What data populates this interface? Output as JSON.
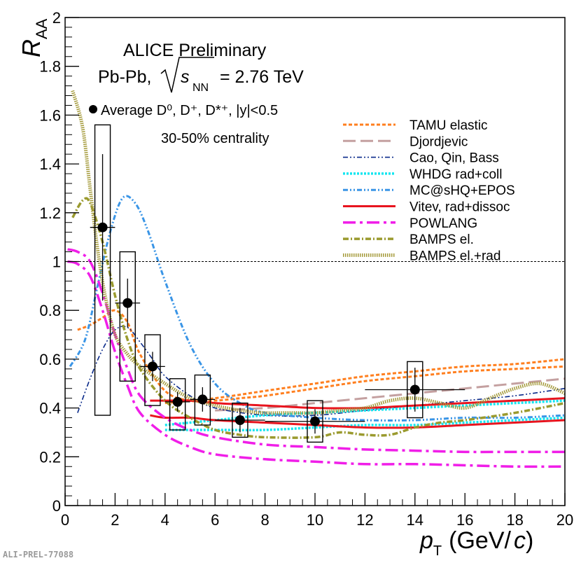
{
  "prelim_tag": "ALI-PREL-77088",
  "chart_data": {
    "type": "scatter",
    "title": "ALICE Preliminary",
    "system": "Pb-Pb, √sNN = 2.76 TeV",
    "system_parts": {
      "prefix": "Pb-Pb,",
      "s": "s",
      "nn": "NN",
      "energy": "= 2.76 TeV"
    },
    "measurement_label": "Average D⁰, D⁺, D*⁺, |y|<0.5",
    "centrality": "30-50% centrality",
    "xlabel": "p_T (GeV/c)",
    "xlabel_parts": {
      "p": "p",
      "T": "T",
      "unit": "(GeV/",
      "c": "c",
      "close": ")"
    },
    "ylabel": "R_AA",
    "ylabel_parts": {
      "R": "R",
      "AA": "AA"
    },
    "xlim": [
      0,
      20
    ],
    "ylim": [
      0,
      2
    ],
    "x_ticks": [
      "0",
      "2",
      "4",
      "6",
      "8",
      "10",
      "12",
      "14",
      "16",
      "18",
      "20"
    ],
    "y_ticks": [
      "0",
      "0.2",
      "0.4",
      "0.6",
      "0.8",
      "1",
      "1.2",
      "1.4",
      "1.6",
      "1.8",
      "2"
    ],
    "reference_line_y": 1,
    "grid": false,
    "legend_position": "top-right",
    "data_points": [
      {
        "x": 1.5,
        "y": 1.14,
        "xerr": 0.5,
        "stat": 0.3,
        "sys_low": 0.37,
        "sys_high": 1.56
      },
      {
        "x": 2.5,
        "y": 0.83,
        "xerr": 0.5,
        "stat": 0.1,
        "sys_low": 0.51,
        "sys_high": 1.04
      },
      {
        "x": 3.5,
        "y": 0.57,
        "xerr": 0.5,
        "stat": 0.06,
        "sys_low": 0.41,
        "sys_high": 0.7
      },
      {
        "x": 4.5,
        "y": 0.425,
        "xerr": 0.5,
        "stat": 0.04,
        "sys_low": 0.31,
        "sys_high": 0.52
      },
      {
        "x": 5.5,
        "y": 0.435,
        "xerr": 0.5,
        "stat": 0.05,
        "sys_low": 0.33,
        "sys_high": 0.535
      },
      {
        "x": 7.0,
        "y": 0.35,
        "xerr": 1.0,
        "stat": 0.05,
        "sys_low": 0.28,
        "sys_high": 0.42
      },
      {
        "x": 10.0,
        "y": 0.345,
        "xerr": 2.0,
        "stat": 0.05,
        "sys_low": 0.26,
        "sys_high": 0.43
      },
      {
        "x": 14.0,
        "y": 0.475,
        "xerr": 2.0,
        "stat": 0.09,
        "sys_low": 0.36,
        "sys_high": 0.59
      }
    ],
    "series": [
      {
        "name": "TAMU elastic",
        "color": "#ff7f1f",
        "dash": "5,3",
        "width": 3,
        "curves": [
          {
            "x": [
              0.5,
              1,
              1.5,
              2,
              2.5,
              3,
              4,
              5,
              6,
              7,
              8,
              10,
              12,
              14,
              16,
              18,
              20
            ],
            "y": [
              0.72,
              0.74,
              0.77,
              0.8,
              0.75,
              0.62,
              0.47,
              0.43,
              0.43,
              0.44,
              0.45,
              0.48,
              0.51,
              0.53,
              0.55,
              0.56,
              0.57
            ]
          },
          {
            "x": [
              4,
              6,
              8,
              10,
              12,
              14,
              16,
              18,
              20
            ],
            "y": [
              0.42,
              0.44,
              0.47,
              0.5,
              0.53,
              0.55,
              0.57,
              0.58,
              0.6
            ]
          }
        ]
      },
      {
        "name": "Djordjevic",
        "color": "#c4a0a0",
        "dash": "18,7",
        "width": 3,
        "curves": [
          {
            "x": [
              6,
              8,
              10,
              12,
              14,
              16,
              18,
              20
            ],
            "y": [
              0.39,
              0.4,
              0.42,
              0.44,
              0.46,
              0.48,
              0.5,
              0.52
            ]
          }
        ]
      },
      {
        "name": "Cao, Qin, Bass",
        "color": "#0a2a8a",
        "dash": "7,3,2,3,2,3",
        "width": 1.6,
        "curves": [
          {
            "x": [
              0.5,
              1,
              1.5,
              2,
              2.5,
              3,
              3.5,
              4,
              5,
              6,
              8,
              10,
              12,
              14,
              16,
              18,
              20
            ],
            "y": [
              0.38,
              0.52,
              0.64,
              0.72,
              0.73,
              0.67,
              0.6,
              0.53,
              0.45,
              0.4,
              0.37,
              0.37,
              0.39,
              0.41,
              0.43,
              0.45,
              0.48
            ]
          }
        ]
      },
      {
        "name": "WHDG rad+coll",
        "color": "#14e6f0",
        "dash": "3,2",
        "width": 3.5,
        "curves": [
          {
            "x": [
              4,
              6,
              8,
              10,
              12,
              14,
              16,
              18,
              20
            ],
            "y": [
              0.33,
              0.35,
              0.37,
              0.38,
              0.39,
              0.4,
              0.41,
              0.42,
              0.43
            ]
          },
          {
            "x": [
              4,
              6,
              8,
              10,
              12,
              14,
              16,
              18,
              20
            ],
            "y": [
              0.31,
              0.31,
              0.31,
              0.32,
              0.33,
              0.33,
              0.34,
              0.35,
              0.36
            ]
          }
        ]
      },
      {
        "name": "MC@sHQ+EPOS",
        "color": "#3a95e6",
        "dash": "7,3,2,3,2,3",
        "width": 3,
        "curves": [
          {
            "x": [
              0.2,
              0.8,
              1.3,
              1.8,
              2.3,
              2.8,
              3.3,
              4,
              5,
              6,
              7,
              8,
              10,
              12,
              14,
              16,
              18,
              20
            ],
            "y": [
              0.57,
              0.68,
              0.9,
              1.12,
              1.26,
              1.24,
              1.13,
              0.92,
              0.66,
              0.5,
              0.42,
              0.38,
              0.36,
              0.35,
              0.35,
              0.36,
              0.36,
              0.37
            ]
          }
        ]
      },
      {
        "name": "Vitev, rad+dissoc",
        "color": "#e8141e",
        "dash": "",
        "width": 3,
        "curves": [
          {
            "x": [
              3.4,
              4,
              5,
              6,
              8,
              10,
              12,
              14,
              16,
              18,
              20
            ],
            "y": [
              0.43,
              0.43,
              0.43,
              0.42,
              0.41,
              0.4,
              0.4,
              0.41,
              0.42,
              0.43,
              0.44
            ]
          },
          {
            "x": [
              3.4,
              4,
              5,
              6,
              8,
              10,
              12,
              14,
              16,
              18,
              20
            ],
            "y": [
              0.37,
              0.36,
              0.36,
              0.35,
              0.34,
              0.33,
              0.32,
              0.32,
              0.33,
              0.34,
              0.35
            ]
          }
        ]
      },
      {
        "name": "POWLANG",
        "color": "#f01ee8",
        "dash": "18,6,4,6",
        "width": 3.5,
        "curves": [
          {
            "x": [
              0.1,
              0.5,
              1,
              1.5,
              2,
              2.5,
              3,
              4,
              5,
              6,
              8,
              10,
              12,
              14,
              16,
              18,
              20
            ],
            "y": [
              1.05,
              1.04,
              1.0,
              0.87,
              0.7,
              0.56,
              0.45,
              0.36,
              0.31,
              0.28,
              0.25,
              0.24,
              0.23,
              0.225,
              0.22,
              0.22,
              0.22
            ]
          },
          {
            "x": [
              0.1,
              0.5,
              1,
              1.5,
              2,
              2.5,
              3,
              4,
              5,
              6,
              8,
              10,
              12,
              14,
              16,
              18,
              20
            ],
            "y": [
              1.0,
              0.99,
              0.94,
              0.8,
              0.63,
              0.49,
              0.38,
              0.29,
              0.24,
              0.21,
              0.19,
              0.18,
              0.17,
              0.17,
              0.165,
              0.16,
              0.16
            ]
          }
        ]
      },
      {
        "name": "BAMPS el.",
        "color": "#9a9a2e",
        "dash": "8,3,2,3",
        "width": 3.5,
        "curves": [
          {
            "x": [
              0.3,
              0.7,
              1,
              1.5,
              2,
              2.5,
              3,
              4,
              5,
              6,
              7,
              8,
              10,
              11,
              12,
              13,
              14,
              15,
              16,
              18,
              20
            ],
            "y": [
              1.18,
              1.25,
              1.24,
              1.08,
              0.86,
              0.68,
              0.56,
              0.43,
              0.36,
              0.31,
              0.29,
              0.28,
              0.28,
              0.3,
              0.29,
              0.29,
              0.32,
              0.34,
              0.35,
              0.38,
              0.42
            ]
          }
        ]
      },
      {
        "name": "BAMPS el.+rad",
        "color": "#a49a3a",
        "dash": "1.5,1.5",
        "width": 5,
        "curves": [
          {
            "x": [
              0.3,
              0.7,
              1,
              1.3,
              1.6,
              2,
              2.5,
              3,
              4,
              5,
              6,
              7,
              8,
              9,
              10,
              11,
              12,
              13,
              14,
              15,
              16,
              17,
              18,
              19,
              20
            ],
            "y": [
              1.7,
              1.55,
              1.3,
              1.05,
              0.86,
              0.7,
              0.62,
              0.57,
              0.5,
              0.44,
              0.41,
              0.39,
              0.38,
              0.38,
              0.38,
              0.39,
              0.4,
              0.43,
              0.44,
              0.42,
              0.4,
              0.44,
              0.48,
              0.5,
              0.46
            ]
          }
        ]
      }
    ]
  }
}
